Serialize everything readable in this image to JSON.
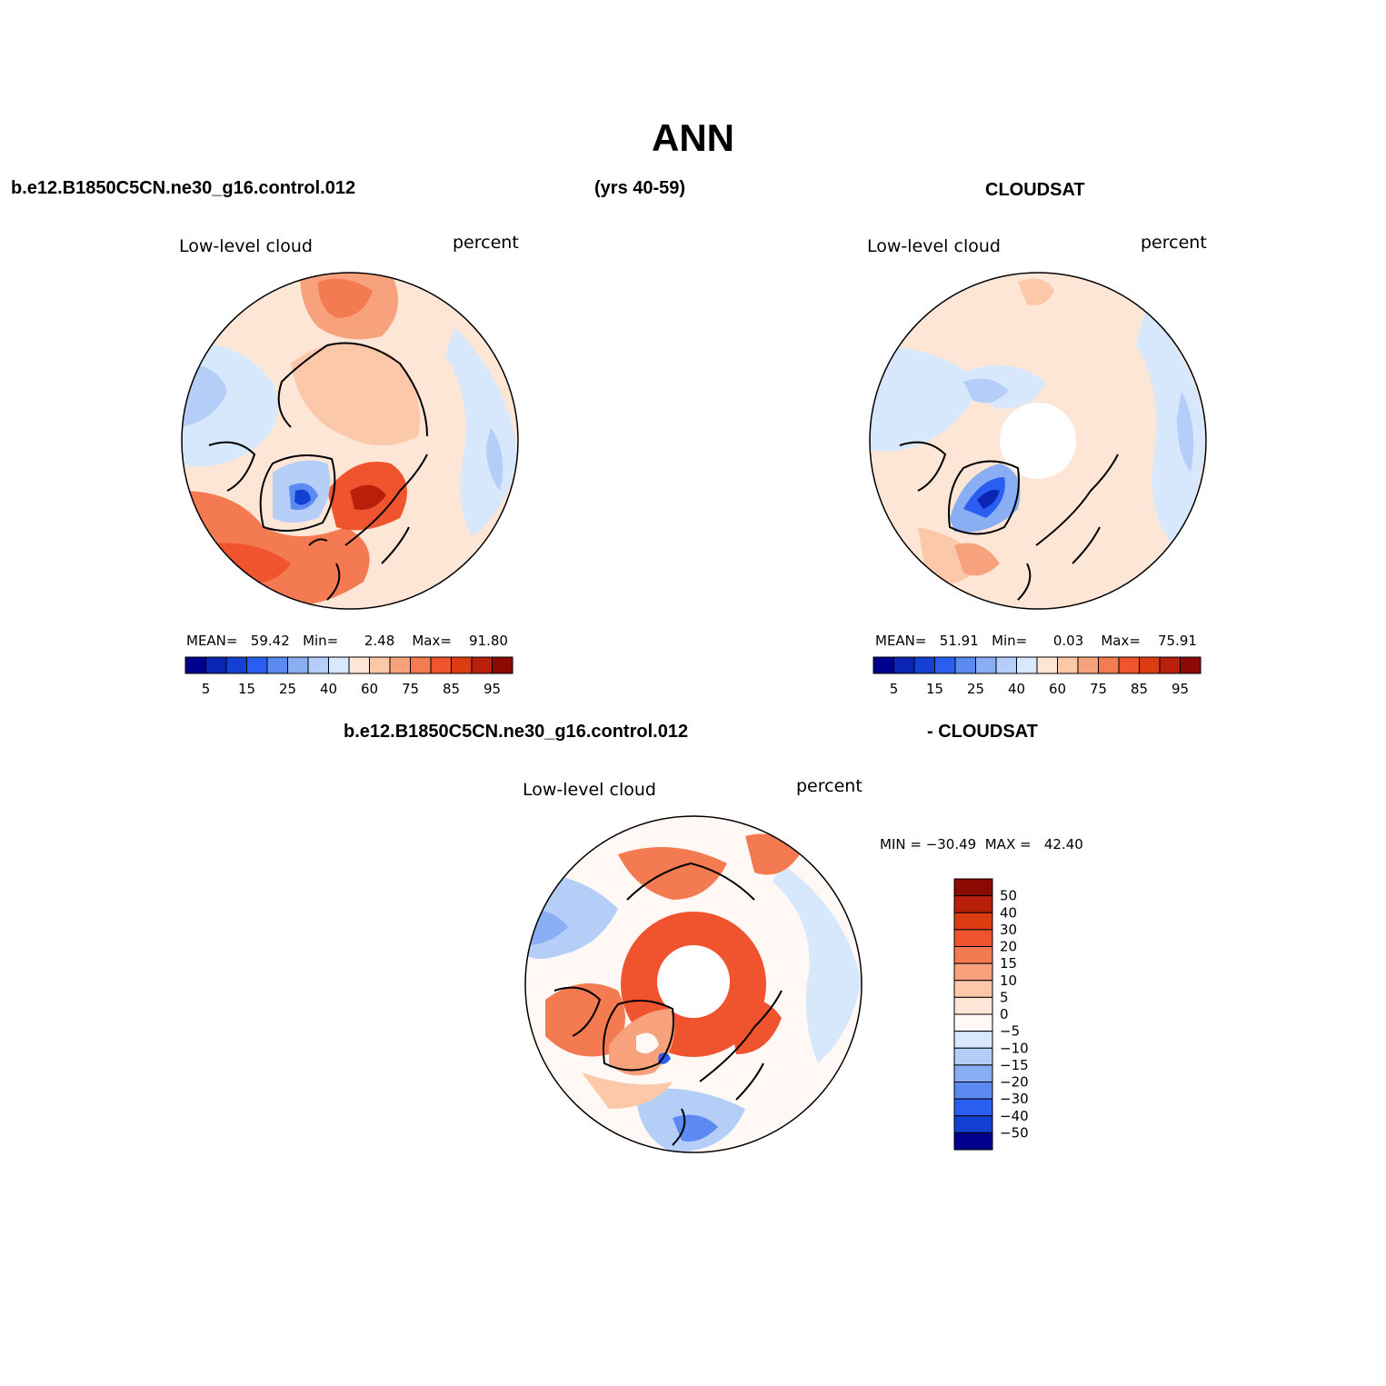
{
  "page": {
    "title": "ANN",
    "case_name": "b.e12.B1850C5CN.ne30_g16.control.012",
    "years": "(yrs 40-59)",
    "obs_name": "CLOUDSAT",
    "diff_case_name": "b.e12.B1850C5CN.ne30_g16.control.012",
    "diff_obs_name": "- CLOUDSAT"
  },
  "panels": [
    {
      "field": "Low-level cloud",
      "units": "percent",
      "stats": {
        "mean_label": "MEAN=",
        "mean": "59.42",
        "min_label": "Min=",
        "min": "2.48",
        "max_label": "Max=",
        "max": "91.80"
      }
    },
    {
      "field": "Low-level cloud",
      "units": "percent",
      "stats": {
        "mean_label": "MEAN=",
        "mean": "51.91",
        "min_label": "Min=",
        "min": "0.03",
        "max_label": "Max=",
        "max": "75.91"
      }
    },
    {
      "field": "Low-level cloud",
      "units": "percent",
      "stats": {
        "minmax": "MIN = −30.49  MAX =   42.40"
      }
    }
  ],
  "colorbar_horizontal": {
    "colors": [
      "#00008c",
      "#0a24b4",
      "#1440d2",
      "#2a5ef0",
      "#5a8af2",
      "#8aaef4",
      "#b4cef8",
      "#d8e8fc",
      "#fde6d6",
      "#fbc8aa",
      "#f7a27c",
      "#f47a52",
      "#f0542e",
      "#dc3c12",
      "#b8200c",
      "#8c0a04"
    ],
    "labels": [
      "5",
      "15",
      "25",
      "40",
      "60",
      "75",
      "85",
      "95"
    ]
  },
  "colorbar_vertical": {
    "colors_top_to_bottom": [
      "#8c0a04",
      "#b8200c",
      "#dc3c12",
      "#f0542e",
      "#f47a52",
      "#f7a27c",
      "#fbc8aa",
      "#fde6d6",
      "#fff8f4",
      "#d8e8fc",
      "#b4cef8",
      "#8aaef4",
      "#5a8af2",
      "#2a5ef0",
      "#1440d2",
      "#00008c"
    ],
    "labels_top_to_bottom": [
      "50",
      "40",
      "30",
      "20",
      "15",
      "10",
      "5",
      "0",
      "−5",
      "−10",
      "−15",
      "−20",
      "−30",
      "−40",
      "−50"
    ]
  }
}
